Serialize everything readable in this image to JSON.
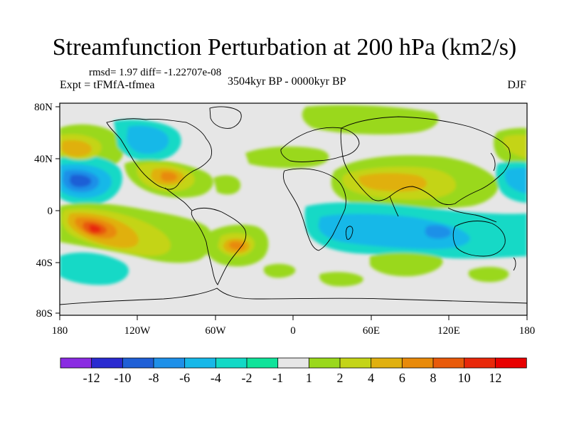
{
  "title": "Streamfunction Perturbation at 200 hPa (km2/s)",
  "stats": "rmsd= 1.97 diff= -1.22707e-08",
  "experiment": "Expt = tFMfA-tfmea",
  "period": "3504kyr BP - 0000kyr BP",
  "season": "DJF",
  "axes": {
    "lat_labels": [
      "80N",
      "40N",
      "0",
      "40S",
      "80S"
    ],
    "lon_labels": [
      "180",
      "120W",
      "60W",
      "0",
      "60E",
      "120E",
      "180"
    ]
  },
  "colorbar": {
    "labels": [
      "-12",
      "-10",
      "-8",
      "-6",
      "-4",
      "-2",
      "-1",
      "1",
      "2",
      "4",
      "6",
      "8",
      "10",
      "12"
    ],
    "colors": [
      "#8a2be2",
      "#2a2ad0",
      "#1f5fd6",
      "#1e90e8",
      "#17b8e8",
      "#13d9c6",
      "#10e39a",
      "#e6e6e6",
      "#9ad81c",
      "#c4d418",
      "#e0b010",
      "#e88a0a",
      "#e85a0a",
      "#e8280a",
      "#e80000"
    ]
  },
  "colors": {
    "background": "#ffffff",
    "no_data": "#e6e6e6",
    "coast": "#000000"
  }
}
